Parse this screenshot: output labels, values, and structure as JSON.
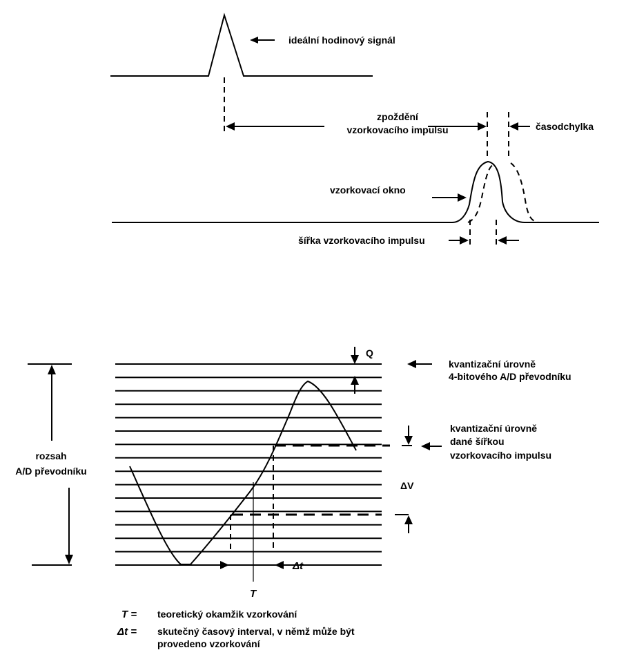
{
  "top": {
    "ideal_clock": "ideální hodinový signál",
    "delay_line1": "zpoždění",
    "delay_line2": "vzorkovacího impulsu",
    "jitter": "časodchylka",
    "window": "vzorkovací okno",
    "pulse_width": "šířka vzorkovacího impulsu"
  },
  "bottom": {
    "q": "Q",
    "levels_line1": "kvantizační úrovně",
    "levels_line2": "4-bitového A/D převodníku",
    "width_levels_line1": "kvantizační úrovně",
    "width_levels_line2": "dané šířkou",
    "width_levels_line3": "vzorkovacího impulsu",
    "range_line1": "rozsah",
    "range_line2": "A/D převodníku",
    "delta_v": "ΔV",
    "delta_t": "Δt",
    "t": "T"
  },
  "legend": {
    "t_sym": "T =",
    "t_text": "teoretický okamžik vzorkování",
    "dt_sym": "Δt =",
    "dt_text_line1": "skutečný časový interval, v němž může být",
    "dt_text_line2": "provedeno vzorkování"
  }
}
